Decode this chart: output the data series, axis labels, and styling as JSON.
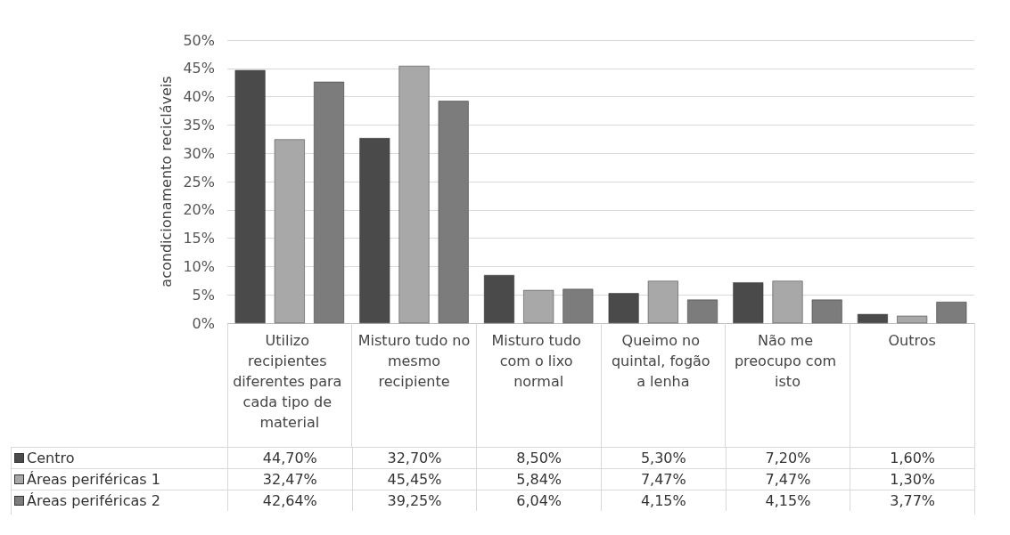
{
  "chart_data": {
    "type": "bar",
    "ylabel": "acondicionamento recicláveis",
    "categories": [
      "Utilizo recipientes diferentes para cada tipo de material",
      "Misturo tudo no mesmo recipiente",
      "Misturo tudo com o lixo normal",
      "Queimo no quintal, fogão a lenha",
      "Não me preocupo com isto",
      "Outros"
    ],
    "series": [
      {
        "name": "Centro",
        "color": "#4a4a4a",
        "values": [
          44.7,
          32.7,
          8.5,
          5.3,
          7.2,
          1.6
        ],
        "value_labels": [
          "44,70%",
          "32,70%",
          "8,50%",
          "5,30%",
          "7,20%",
          "1,60%"
        ]
      },
      {
        "name": "Áreas periféricas 1",
        "color": "#a8a8a8",
        "values": [
          32.47,
          45.45,
          5.84,
          7.47,
          7.47,
          1.3
        ],
        "value_labels": [
          "32,47%",
          "45,45%",
          "5,84%",
          "7,47%",
          "7,47%",
          "1,30%"
        ]
      },
      {
        "name": "Áreas periféricas 2",
        "color": "#7c7c7c",
        "values": [
          42.64,
          39.25,
          6.04,
          4.15,
          4.15,
          3.77
        ],
        "value_labels": [
          "42,64%",
          "39,25%",
          "6,04%",
          "4,15%",
          "4,15%",
          "3,77%"
        ]
      }
    ],
    "ylim": [
      0,
      50
    ],
    "yticks": [
      {
        "value": 0,
        "label": "0%"
      },
      {
        "value": 5,
        "label": "5%"
      },
      {
        "value": 10,
        "label": "10%"
      },
      {
        "value": 15,
        "label": "15%"
      },
      {
        "value": 20,
        "label": "20%"
      },
      {
        "value": 25,
        "label": "25%"
      },
      {
        "value": 30,
        "label": "30%"
      },
      {
        "value": 35,
        "label": "35%"
      },
      {
        "value": 40,
        "label": "40%"
      },
      {
        "value": 45,
        "label": "45%"
      },
      {
        "value": 50,
        "label": "50%"
      }
    ],
    "grid": "y",
    "legend": "bottom"
  }
}
